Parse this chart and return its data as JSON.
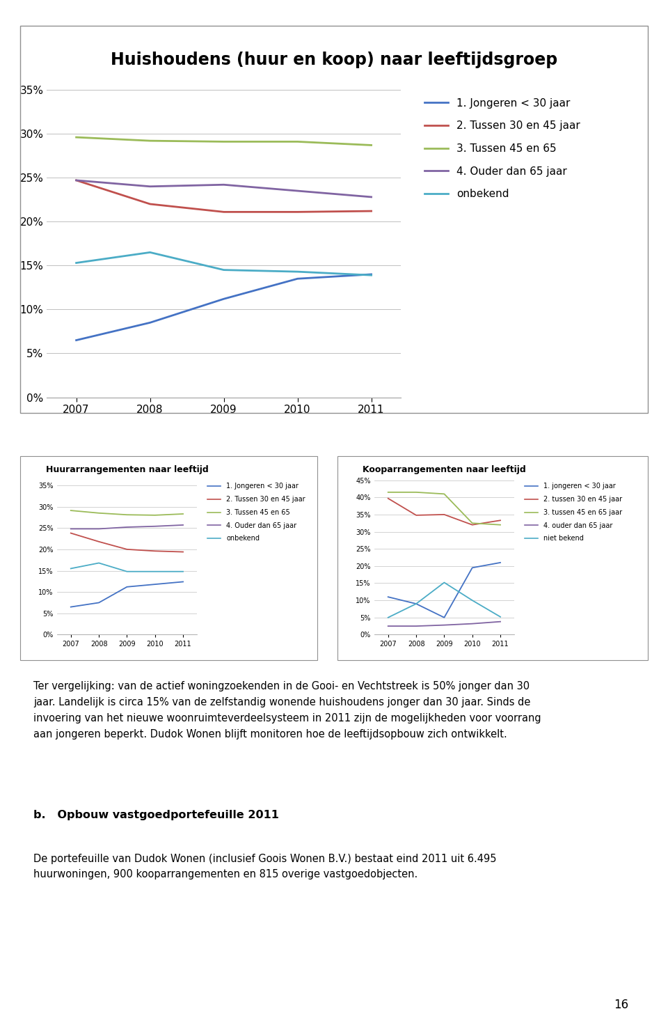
{
  "title_main": "Huishoudens (huur en koop) naar leeftijdsgroep",
  "years": [
    2007,
    2008,
    2009,
    2010,
    2011
  ],
  "main_chart": {
    "jongeren": [
      0.065,
      0.085,
      0.112,
      0.135,
      0.14
    ],
    "tussen30_45": [
      0.247,
      0.22,
      0.211,
      0.211,
      0.212
    ],
    "tussen45_65": [
      0.296,
      0.292,
      0.291,
      0.291,
      0.287
    ],
    "ouder65": [
      0.247,
      0.24,
      0.242,
      0.235,
      0.228
    ],
    "onbekend": [
      0.153,
      0.165,
      0.145,
      0.143,
      0.139
    ]
  },
  "huur_chart": {
    "title": "Huurarrangementen naar leeftijd",
    "jongeren": [
      0.065,
      0.075,
      0.112,
      0.118,
      0.124
    ],
    "tussen30_45": [
      0.238,
      0.218,
      0.2,
      0.196,
      0.194
    ],
    "tussen45_65": [
      0.291,
      0.285,
      0.281,
      0.28,
      0.283
    ],
    "ouder65": [
      0.248,
      0.248,
      0.252,
      0.254,
      0.257
    ],
    "onbekend": [
      0.155,
      0.168,
      0.148,
      0.148,
      0.148
    ]
  },
  "koop_chart": {
    "title": "Kooparrangementen naar leeftijd",
    "jongeren": [
      0.11,
      0.09,
      0.05,
      0.195,
      0.21
    ],
    "tussen30_45": [
      0.397,
      0.348,
      0.35,
      0.32,
      0.333
    ],
    "tussen45_65": [
      0.415,
      0.415,
      0.41,
      0.325,
      0.32
    ],
    "ouder65": [
      0.025,
      0.025,
      0.028,
      0.032,
      0.038
    ],
    "onbekend": [
      0.05,
      0.09,
      0.152,
      0.1,
      0.052
    ]
  },
  "colors": {
    "jongeren": "#4472C4",
    "tussen30_45": "#C0504D",
    "tussen45_65": "#9BBB59",
    "ouder65": "#8064A2",
    "onbekend": "#4BACC6"
  },
  "legend_main": [
    "1. Jongeren < 30 jaar",
    "2. Tussen 30 en 45 jaar",
    "3. Tussen 45 en 65",
    "4. Ouder dan 65 jaar",
    "onbekend"
  ],
  "legend_huur": [
    "1. Jongeren < 30 jaar",
    "2. Tussen 30 en 45 jaar",
    "3. Tussen 45 en 65",
    "4. Ouder dan 65 jaar",
    "onbekend"
  ],
  "legend_koop": [
    "1. jongeren < 30 jaar",
    "2. tussen 30 en 45 jaar",
    "3. tussen 45 en 65 jaar",
    "4. ouder dan 65 jaar",
    "niet bekend"
  ],
  "text_paragraph": "Ter vergelijking: van de actief woningzoekenden in de Gooi- en Vechtstreek is 50% jonger dan 30\njaar. Landelijk is circa 15% van de zelfstandig wonende huishoudens jonger dan 30 jaar. Sinds de\ninvoering van het nieuwe woonruimteverdeelsysteem in 2011 zijn de mogelijkheden voor voorrang\naan jongeren beperkt. Dudok Wonen blijft monitoren hoe de leeftijdsopbouw zich ontwikkelt.",
  "section_b_title": "b.   Opbouw vastgoedportefeuille 2011",
  "section_b_text": "De portefeuille van Dudok Wonen (inclusief Goois Wonen B.V.) bestaat eind 2011 uit 6.495\nhuurwoningen, 900 kooparrangementen en 815 overige vastgoedobjecten.",
  "page_number": "16"
}
